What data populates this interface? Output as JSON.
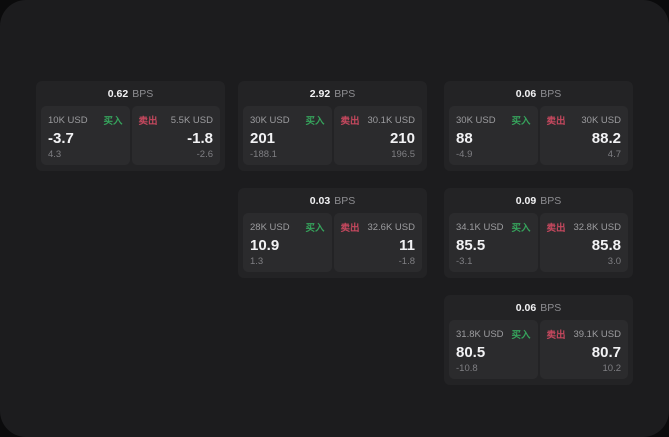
{
  "labels": {
    "buy": "买入",
    "sell": "卖出",
    "bps_unit": "BPS"
  },
  "colors": {
    "page_bg": "#1c1c1e",
    "card_bg": "#232325",
    "panel_bg": "#2b2b2d",
    "buy_green": "#36a35c",
    "sell_red": "#c5485e"
  },
  "cards": [
    {
      "bps": "0.62",
      "buy": {
        "amount": "10K USD",
        "value": "-3.7",
        "change": "4.3"
      },
      "sell": {
        "amount": "5.5K USD",
        "value": "-1.8",
        "change": "-2.6"
      }
    },
    {
      "bps": "2.92",
      "buy": {
        "amount": "30K USD",
        "value": "201",
        "change": "-188.1"
      },
      "sell": {
        "amount": "30.1K USD",
        "value": "210",
        "change": "196.5"
      }
    },
    {
      "bps": "0.06",
      "buy": {
        "amount": "30K USD",
        "value": "88",
        "change": "-4.9"
      },
      "sell": {
        "amount": "30K USD",
        "value": "88.2",
        "change": "4.7"
      }
    },
    {
      "bps": "0.03",
      "buy": {
        "amount": "28K USD",
        "value": "10.9",
        "change": "1.3"
      },
      "sell": {
        "amount": "32.6K USD",
        "value": "11",
        "change": "-1.8"
      }
    },
    {
      "bps": "0.09",
      "buy": {
        "amount": "34.1K USD",
        "value": "85.5",
        "change": "-3.1"
      },
      "sell": {
        "amount": "32.8K USD",
        "value": "85.8",
        "change": "3.0"
      }
    },
    {
      "bps": "0.06",
      "buy": {
        "amount": "31.8K USD",
        "value": "80.5",
        "change": "-10.8"
      },
      "sell": {
        "amount": "39.1K USD",
        "value": "80.7",
        "change": "10.2"
      }
    }
  ]
}
